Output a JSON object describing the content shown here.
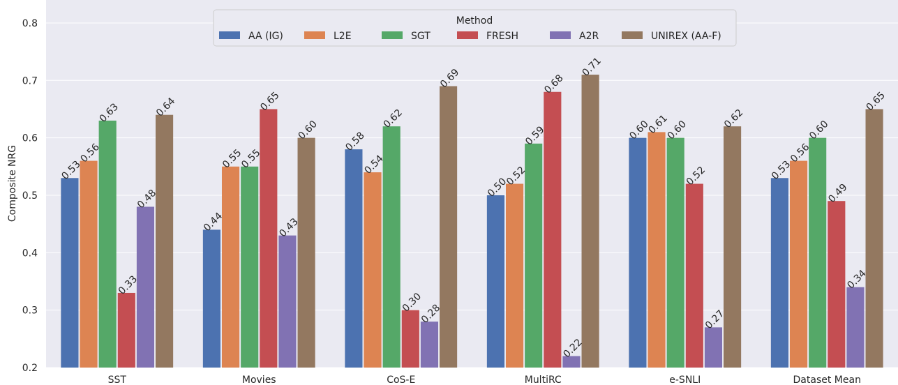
{
  "chart_data": {
    "type": "bar",
    "ylabel": "Composite NRG",
    "xlabel": "",
    "ylim": [
      0.2,
      0.84
    ],
    "yticks": [
      "0.2",
      "0.3",
      "0.4",
      "0.5",
      "0.6",
      "0.7",
      "0.8"
    ],
    "grid": true,
    "categories": [
      "SST",
      "Movies",
      "CoS-E",
      "MultiRC",
      "e-SNLI",
      "Dataset Mean"
    ],
    "legend": {
      "title": "Method",
      "placement": "top-center",
      "ncol": 6
    },
    "series": [
      {
        "name": "AA (IG)",
        "color": "#4c72b0",
        "values": [
          0.53,
          0.44,
          0.58,
          0.5,
          0.6,
          0.53
        ],
        "labels": [
          "0.53",
          "0.44",
          "0.58",
          "0.50",
          "0.60",
          "0.53"
        ]
      },
      {
        "name": "L2E",
        "color": "#dd8452",
        "values": [
          0.56,
          0.55,
          0.54,
          0.52,
          0.61,
          0.56
        ],
        "labels": [
          "0.56",
          "0.55",
          "0.54",
          "0.52",
          "0.61",
          "0.56"
        ]
      },
      {
        "name": "SGT",
        "color": "#55a868",
        "values": [
          0.63,
          0.55,
          0.62,
          0.59,
          0.6,
          0.6
        ],
        "labels": [
          "0.63",
          "0.55",
          "0.62",
          "0.59",
          "0.60",
          "0.60"
        ]
      },
      {
        "name": "FRESH",
        "color": "#c44e52",
        "values": [
          0.33,
          0.65,
          0.3,
          0.68,
          0.52,
          0.49
        ],
        "labels": [
          "0.33",
          "0.65",
          "0.30",
          "0.68",
          "0.52",
          "0.49"
        ]
      },
      {
        "name": "A2R",
        "color": "#8172b3",
        "values": [
          0.48,
          0.43,
          0.28,
          0.22,
          0.27,
          0.34
        ],
        "labels": [
          "0.48",
          "0.43",
          "0.28",
          "0.22",
          "0.27",
          "0.34"
        ]
      },
      {
        "name": "UNIREX (AA-F)",
        "color": "#937860",
        "values": [
          0.64,
          0.6,
          0.69,
          0.71,
          0.62,
          0.65
        ],
        "labels": [
          "0.64",
          "0.60",
          "0.69",
          "0.71",
          "0.62",
          "0.65"
        ]
      }
    ],
    "background": "#eaeaf2",
    "grid_color": "#ffffff"
  }
}
